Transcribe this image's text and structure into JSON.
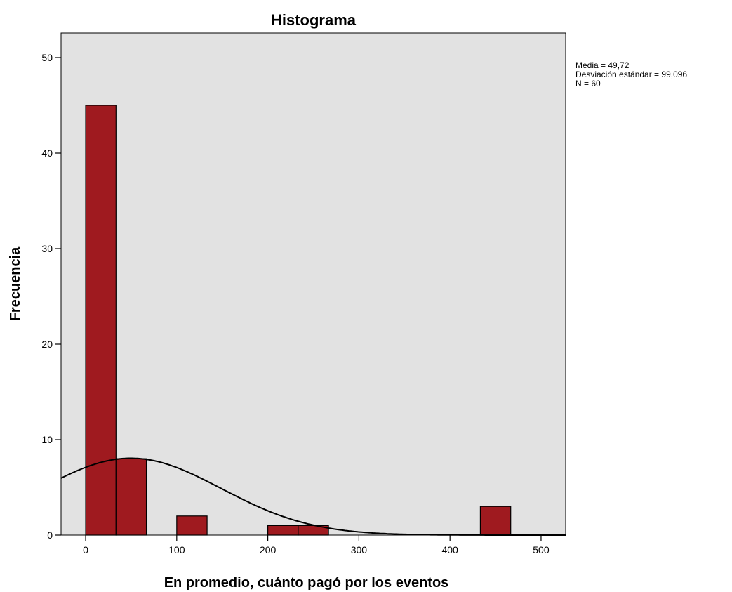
{
  "chart_data": {
    "type": "bar",
    "title": "Histograma",
    "xlabel": "En promedio, cuánto pagó por los eventos",
    "ylabel": "Frecuencia",
    "xlim": [
      -27,
      527
    ],
    "ylim": [
      0,
      50
    ],
    "xticks": [
      0,
      100,
      200,
      300,
      400,
      500
    ],
    "yticks": [
      0,
      10,
      20,
      30,
      40,
      50
    ],
    "bin_width": 33.33,
    "bins": [
      {
        "start": 0,
        "end": 33.33,
        "count": 45
      },
      {
        "start": 33.33,
        "end": 66.67,
        "count": 8
      },
      {
        "start": 100,
        "end": 133.33,
        "count": 2
      },
      {
        "start": 200,
        "end": 233.33,
        "count": 1
      },
      {
        "start": 233.33,
        "end": 266.67,
        "count": 1
      },
      {
        "start": 433.33,
        "end": 466.67,
        "count": 3
      }
    ],
    "normal_curve": {
      "mean": 49.72,
      "sd": 99.096,
      "n": 60
    },
    "stats_lines": [
      "Media = 49,72",
      "Desviación estándar = 99,096",
      "N = 60"
    ],
    "colors": {
      "bar": "#9f1a1f",
      "bar_border": "#000000",
      "plot_background": "#e2e2e2",
      "curve": "#000000"
    },
    "grid": false,
    "legend": "none"
  }
}
